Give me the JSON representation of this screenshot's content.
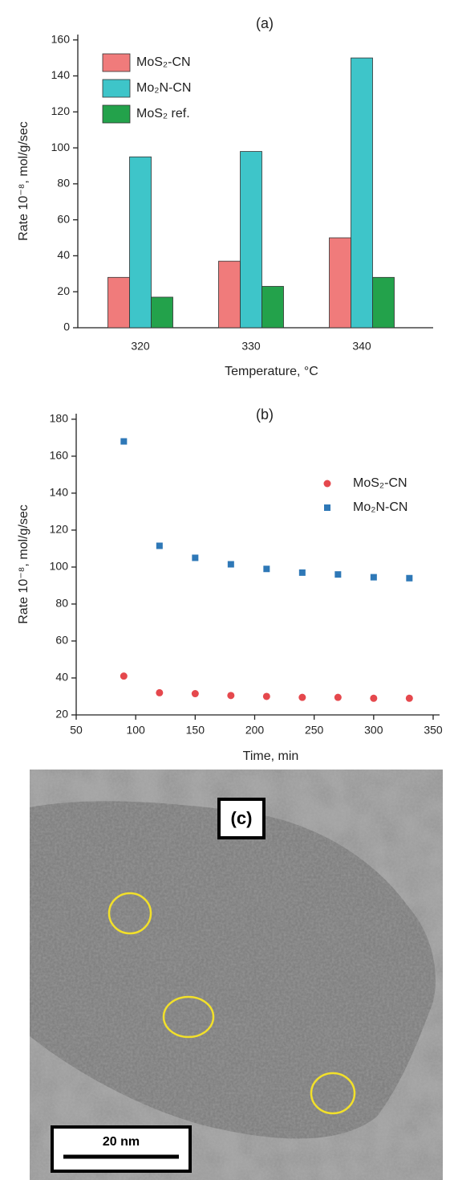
{
  "chart_data": [
    {
      "type": "bar",
      "title": "(a)",
      "x_label": "Temperature, °C",
      "y_label": "Rate 10⁻⁸, mol/g/sec",
      "categories": [
        "320",
        "330",
        "340"
      ],
      "series": [
        {
          "name": "MoS₂-CN",
          "color": "#f07b7b",
          "values": [
            28,
            37,
            50
          ]
        },
        {
          "name": "Mo₂N-CN",
          "color": "#3ec5c9",
          "values": [
            95,
            98,
            150
          ]
        },
        {
          "name": "MoS₂ ref.",
          "color": "#23a24b",
          "values": [
            17,
            23,
            28
          ]
        }
      ],
      "ylim": [
        0,
        163
      ],
      "yticks": [
        0,
        20,
        40,
        60,
        80,
        100,
        120,
        140,
        160
      ],
      "legend": "upper left"
    },
    {
      "type": "scatter",
      "title": "(b)",
      "x_label": "Time, min",
      "y_label": "Rate 10⁻⁸, mol/g/sec",
      "x": [
        90,
        120,
        150,
        180,
        210,
        240,
        270,
        300,
        330
      ],
      "series": [
        {
          "name": "MoS₂-CN",
          "color": "#e5484d",
          "marker": "circle",
          "values": [
            41,
            32,
            31.5,
            30.5,
            30,
            29.5,
            29.5,
            29,
            29
          ]
        },
        {
          "name": "Mo₂N-CN",
          "color": "#2e78b7",
          "marker": "square",
          "values": [
            168,
            111.5,
            105,
            101.5,
            99,
            97,
            96,
            94.5,
            94
          ]
        }
      ],
      "xlim": [
        50,
        350
      ],
      "xticks": [
        50,
        100,
        150,
        200,
        250,
        300,
        350
      ],
      "ylim": [
        20,
        183
      ],
      "yticks": [
        20,
        40,
        60,
        80,
        100,
        120,
        140,
        160,
        180
      ],
      "legend": "upper right"
    }
  ],
  "image": {
    "label": "(c)",
    "scale_bar": "20 nm"
  }
}
